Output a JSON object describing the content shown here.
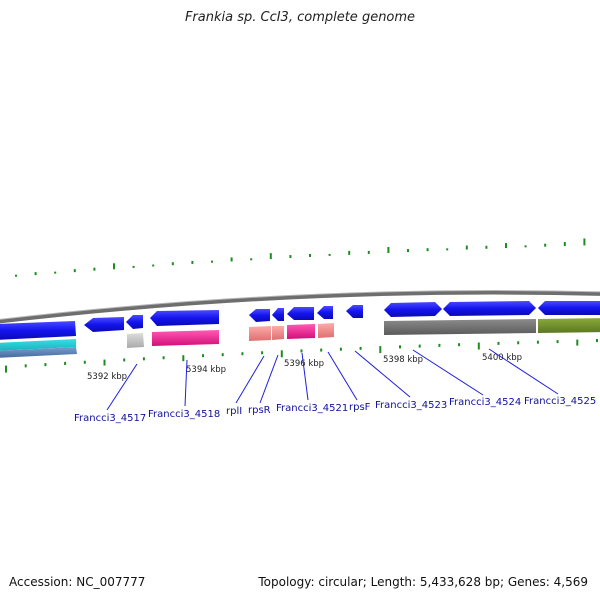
{
  "title": "Frankia sp. CcI3, complete genome",
  "footer": {
    "accession": "Accession: NC_007777",
    "summary": "Topology: circular; Length: 5,433,628 bp; Genes: 4,569"
  },
  "colors": {
    "cds": "#1a1aee",
    "trna": "#c8c8c8",
    "misc_magenta": "#ee1e8c",
    "misc_salmon": "#ee8888",
    "gray_feature": "#707070",
    "olive_feature": "#6e8c2a",
    "cyan_feature": "#19c8d2",
    "steel_feature": "#5a82b4",
    "backbone": "#808080",
    "gc_marks": "#1e8c1e",
    "label_line": "#2020dd"
  },
  "kbp_labels": [
    "5392 kbp",
    "5394 kbp",
    "5396 kbp",
    "5398 kbp",
    "5400 kbp"
  ],
  "gene_labels": [
    "Francci3_4517",
    "Francci3_4518",
    "rplI",
    "rpsR",
    "Francci3_4521",
    "rpsF",
    "Francci3_4523",
    "Francci3_4524",
    "Francci3_4525"
  ]
}
